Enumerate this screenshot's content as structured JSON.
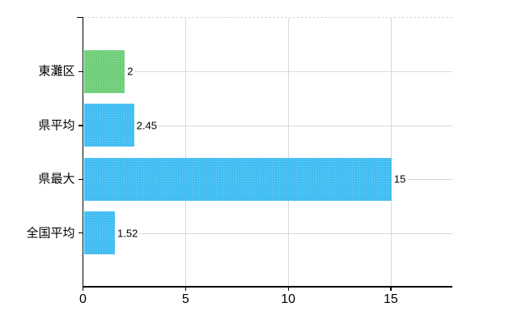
{
  "chart_data": {
    "type": "bar",
    "orientation": "horizontal",
    "title": "",
    "categories": [
      "東灘区",
      "県平均",
      "県最大",
      "全国平均"
    ],
    "values": [
      2,
      2.45,
      15,
      1.52
    ],
    "value_labels": [
      "2",
      "2.45",
      "15",
      "1.52"
    ],
    "bar_colors": [
      "#6fce78",
      "#41bdf2",
      "#41bdf2",
      "#41bdf2"
    ],
    "xlim": [
      0,
      18
    ],
    "x_ticks": [
      0,
      5,
      10,
      15
    ],
    "x_tick_labels": [
      "0",
      "5",
      "10",
      "15"
    ],
    "grid": true,
    "grid_vertical_at": [
      5,
      10,
      15
    ],
    "legend": false,
    "plot_top_border_style": "dashed",
    "colors": {
      "axis": "#000000",
      "gridline": "#d9d9d9",
      "top_border": "#d9d9d9",
      "text": "#000000",
      "value_text": "#000000",
      "background": "#ffffff"
    }
  }
}
